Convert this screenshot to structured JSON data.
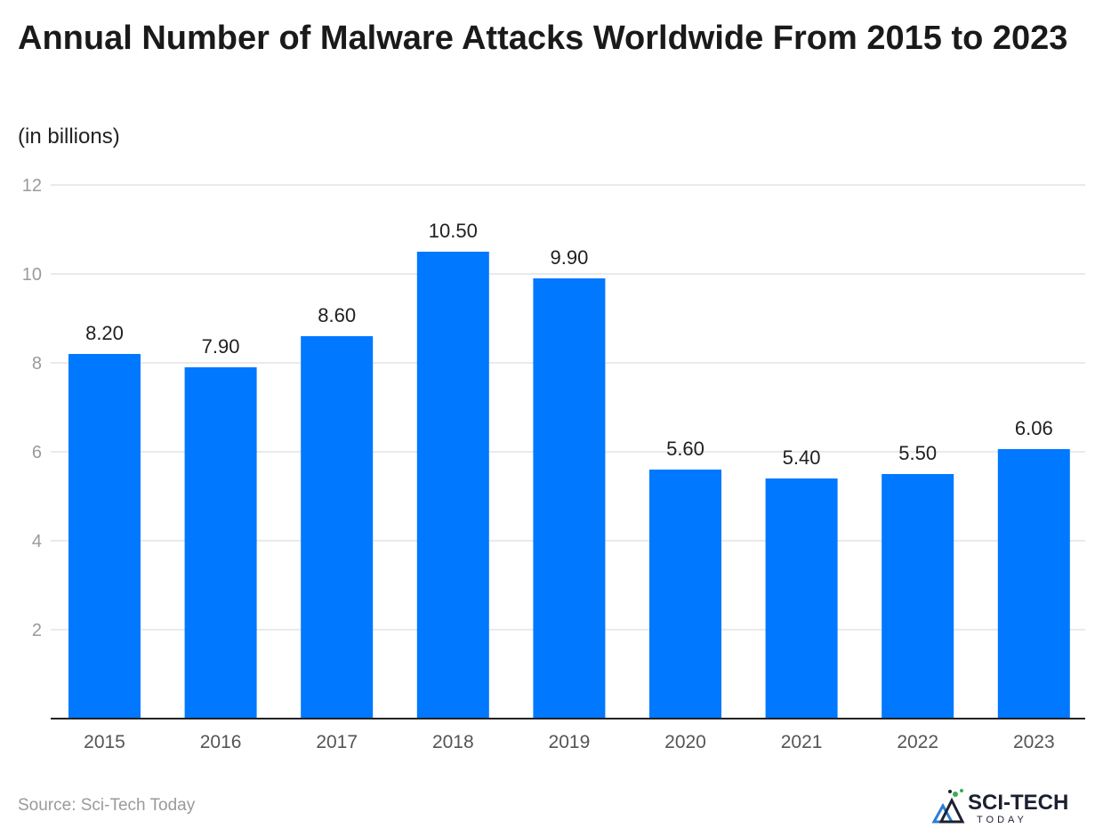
{
  "header": {
    "title": "Annual Number of Malware Attacks Worldwide From 2015 to 2023",
    "subtitle": "(in billions)"
  },
  "footer": {
    "source": "Source: Sci-Tech Today",
    "logo_main": "SCI-TECH",
    "logo_sub": "TODAY"
  },
  "colors": {
    "bar": "#0078ff",
    "grid": "#e3e3e3",
    "axis": "#222222"
  },
  "chart_data": {
    "type": "bar",
    "title": "Annual Number of Malware Attacks Worldwide From 2015 to 2023",
    "subtitle": "(in billions)",
    "categories": [
      "2015",
      "2016",
      "2017",
      "2018",
      "2019",
      "2020",
      "2021",
      "2022",
      "2023"
    ],
    "values": [
      8.2,
      7.9,
      8.6,
      10.5,
      9.9,
      5.6,
      5.4,
      5.5,
      6.06
    ],
    "value_labels": [
      "8.20",
      "7.90",
      "8.60",
      "10.50",
      "9.90",
      "5.60",
      "5.40",
      "5.50",
      "6.06"
    ],
    "ylim": [
      0,
      12
    ],
    "yticks": [
      2,
      4,
      6,
      8,
      10,
      12
    ],
    "grid": true,
    "legend": "none"
  }
}
